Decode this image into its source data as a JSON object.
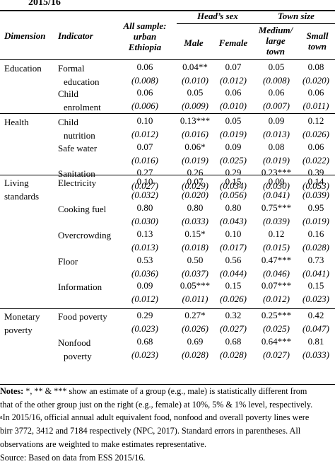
{
  "title": "2015/16",
  "headers": {
    "dimension": "Dimension",
    "indicator": "Indicator",
    "all_sample": [
      "All sample:",
      "urban",
      "Ethiopia"
    ],
    "heads_sex": "Head’s sex",
    "male": "Male",
    "female": "Female",
    "town_size": "Town size",
    "medium_large": [
      "Medium/",
      "large",
      "town"
    ],
    "small": [
      "Small",
      "town"
    ]
  },
  "rows": [
    {
      "dimension": "Education",
      "indicator": [
        "Formal",
        "education"
      ],
      "est": [
        "0.06",
        "0.04**",
        "0.07",
        "0.05",
        "0.08"
      ],
      "se": [
        "(0.008)",
        "(0.010)",
        "(0.012)",
        "(0.008)",
        "(0.020)"
      ]
    },
    {
      "dimension": "",
      "indicator": [
        "Child",
        "enrolment"
      ],
      "est": [
        "0.06",
        "0.05",
        "0.06",
        "0.06",
        "0.06"
      ],
      "se": [
        "(0.006)",
        "(0.009)",
        "(0.010)",
        "(0.007)",
        "(0.011)"
      ]
    },
    {
      "dimension": "Health",
      "indicator": [
        "Child",
        "nutrition"
      ],
      "est": [
        "0.10",
        "0.13***",
        "0.05",
        "0.09",
        "0.12"
      ],
      "se": [
        "(0.012)",
        "(0.016)",
        "(0.019)",
        "(0.013)",
        "(0.026)"
      ]
    },
    {
      "dimension": "",
      "indicator": [
        "Safe water"
      ],
      "est": [
        "0.07",
        "0.06*",
        "0.09",
        "0.08",
        "0.06"
      ],
      "se": [
        "(0.016)",
        "(0.019)",
        "(0.025)",
        "(0.019)",
        "(0.022)"
      ]
    },
    {
      "dimension": "",
      "indicator": [
        "Sanitation"
      ],
      "est": [
        "0.27",
        "0.26",
        "0.29",
        "0.23***",
        "0.39"
      ],
      "se": [
        "(0.027)",
        "(0.029)",
        "(0.034)",
        "(0.030)",
        "(0.053)"
      ]
    },
    {
      "dimension": [
        "Living",
        "standards"
      ],
      "indicator": [
        "Electricity"
      ],
      "est": [
        "0.10",
        "0.07",
        "0.15",
        "0.09",
        "0.14"
      ],
      "se": [
        "(0.032)",
        "(0.020)",
        "(0.056)",
        "(0.041)",
        "(0.039)"
      ]
    },
    {
      "dimension": "",
      "indicator": [
        "Cooking fuel"
      ],
      "est": [
        "0.80",
        "0.80",
        "0.80",
        "0.75***",
        "0.95"
      ],
      "se": [
        "(0.030)",
        "(0.033)",
        "(0.043)",
        "(0.039)",
        "(0.019)"
      ]
    },
    {
      "dimension": "",
      "indicator": [
        "Overcrowding"
      ],
      "est": [
        "0.13",
        "0.15*",
        "0.10",
        "0.12",
        "0.16"
      ],
      "se": [
        "(0.013)",
        "(0.018)",
        "(0.017)",
        "(0.015)",
        "(0.028)"
      ]
    },
    {
      "dimension": "",
      "indicator": [
        "Floor"
      ],
      "est": [
        "0.53",
        "0.50",
        "0.56",
        "0.47***",
        "0.73"
      ],
      "se": [
        "(0.036)",
        "(0.037)",
        "(0.044)",
        "(0.046)",
        "(0.041)"
      ]
    },
    {
      "dimension": "",
      "indicator": [
        "Information"
      ],
      "est": [
        "0.09",
        "0.05***",
        "0.15",
        "0.07***",
        "0.15"
      ],
      "se": [
        "(0.012)",
        "(0.011)",
        "(0.026)",
        "(0.012)",
        "(0.023)"
      ]
    },
    {
      "dimension": [
        "Monetary",
        "poverty"
      ],
      "indicator": [
        "Food poverty"
      ],
      "est": [
        "0.29",
        "0.27*",
        "0.32",
        "0.25***",
        "0.42"
      ],
      "se": [
        "(0.023)",
        "(0.026)",
        "(0.027)",
        "(0.025)",
        "(0.047)"
      ]
    },
    {
      "dimension": "",
      "indicator": [
        "Nonfood",
        "poverty"
      ],
      "est": [
        "0.68",
        "0.69",
        "0.68",
        "0.64***",
        "0.81"
      ],
      "se": [
        "(0.023)",
        "(0.028)",
        "(0.028)",
        "(0.027)",
        "(0.033)"
      ]
    }
  ],
  "notes": {
    "label": "Notes:",
    "line1": " *, ** & *** show an estimate of a group (e.g., male) is statistically different from",
    "line2": "that of the other group just on the right (e.g., female) at 10%, 5% & 1% level, respectively.",
    "sup": "a",
    "line3": "In 2015/16, official annual adult equivalent food, nonfood and overall poverty lines were",
    "line4": "birr 3772, 3412 and 7184 respectively (NPC, 2017). Standard errors in parentheses. All",
    "line5": "observations are weighted to make estimates representative.",
    "source": "Source: Based on data from ESS 2015/16."
  }
}
